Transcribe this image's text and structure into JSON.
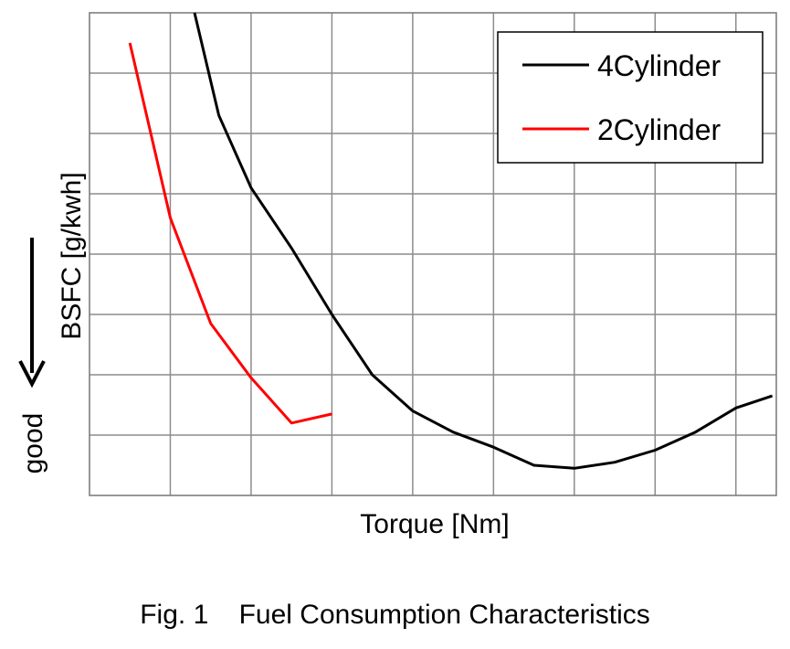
{
  "chart_data": {
    "type": "line",
    "title": "",
    "xlabel": "Torque [Nm]",
    "ylabel": "BSFC [g/kwh]",
    "annotation": "good",
    "xlim": [
      0,
      17
    ],
    "ylim": [
      0,
      8
    ],
    "grid": true,
    "legend_position": "top-right",
    "series": [
      {
        "name": "4Cylinder",
        "color": "#000000",
        "x": [
          2.6,
          3.2,
          4.0,
          5.0,
          6.0,
          7.0,
          8.0,
          9.0,
          10.0,
          11.0,
          12.0,
          13.0,
          14.0,
          15.0,
          16.0,
          16.9
        ],
        "y": [
          8.0,
          6.3,
          5.1,
          4.1,
          3.0,
          2.0,
          1.4,
          1.05,
          0.8,
          0.5,
          0.45,
          0.55,
          0.75,
          1.05,
          1.45,
          1.65
        ]
      },
      {
        "name": "2Cylinder",
        "color": "#ff0000",
        "x": [
          1.0,
          2.0,
          3.0,
          4.0,
          5.0,
          6.0
        ],
        "y": [
          7.5,
          4.6,
          2.85,
          1.95,
          1.2,
          1.35
        ]
      }
    ]
  },
  "caption": {
    "fig": "Fig. 1",
    "text": "Fuel Consumption Characteristics"
  }
}
